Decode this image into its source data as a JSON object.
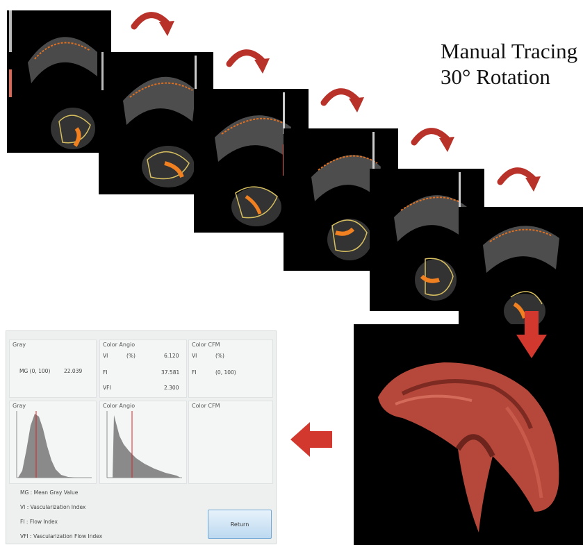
{
  "title": {
    "line1": "Manual Tracing",
    "line2": "30° Rotation"
  },
  "stats": {
    "gray": {
      "title": "Gray",
      "mg_label": "MG (0, 100)",
      "mg_value": "22.039"
    },
    "color_angio": {
      "title": "Color Angio",
      "vi_label": "VI",
      "vi_unit": "(%)",
      "vi_value": "6.120",
      "fi_label": "FI",
      "fi_value": "37.581",
      "vfi_label": "VFI",
      "vfi_value": "2.300"
    },
    "color_cfm": {
      "title": "Color CFM",
      "vi_label": "VI",
      "vi_unit": "(%)",
      "fi_label": "FI",
      "fi_range": "(0, 100)"
    }
  },
  "histograms": {
    "gray_title": "Gray",
    "angio_title": "Color Angio",
    "cfm_title": "Color CFM"
  },
  "legend": [
    {
      "abbr": "MG :",
      "text": "Mean Gray Value"
    },
    {
      "abbr": "VI :",
      "text": "Vascularization Index"
    },
    {
      "abbr": "FI :",
      "text": "Flow Index"
    },
    {
      "abbr": "VFI :",
      "text": "Vascularization Flow Index"
    }
  ],
  "buttons": {
    "return_label": "Return"
  },
  "colors": {
    "arrow_red": "#b8322a",
    "mesh_red": "#b5483a",
    "histogram_marker": "#d22"
  }
}
